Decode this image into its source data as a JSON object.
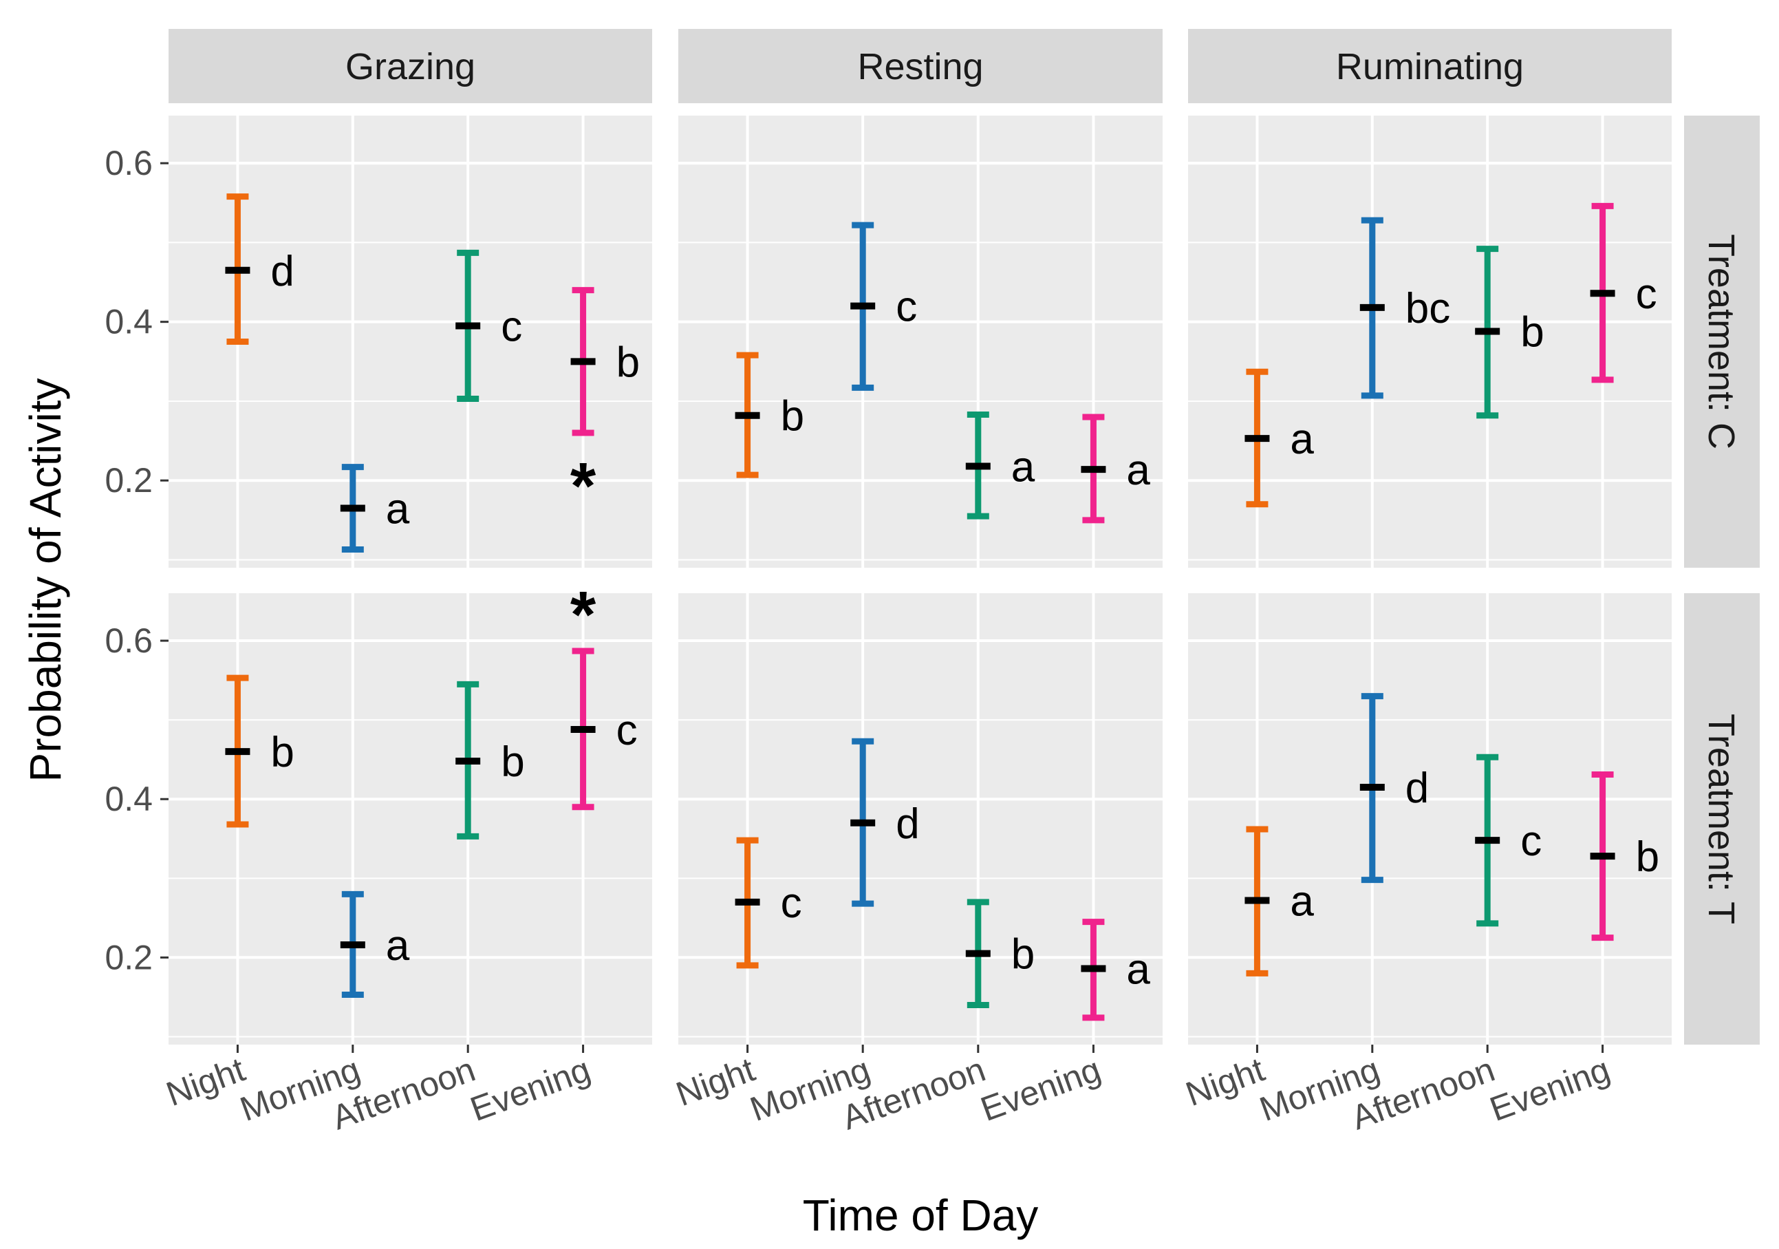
{
  "chart_data": {
    "type": "errorbar",
    "xlabel": "Time of Day",
    "ylabel": "Probability of Activity",
    "ylim": [
      0.09,
      0.66
    ],
    "yticks": [
      0.2,
      0.4,
      0.6
    ],
    "ytick_labels": [
      "0.2",
      "0.4",
      "0.6"
    ],
    "categories": [
      "Night",
      "Morning",
      "Afternoon",
      "Evening"
    ],
    "colors": {
      "Night": "#ef6a0d",
      "Morning": "#1b71b4",
      "Afternoon": "#0d9970",
      "Evening": "#f0238d"
    },
    "activities": [
      "Grazing",
      "Resting",
      "Ruminating"
    ],
    "treatments": [
      "Treatment: C",
      "Treatment: T"
    ],
    "panels": [
      {
        "activity": "Grazing",
        "treatment": "Treatment: C",
        "points": [
          {
            "category": "Night",
            "mean": 0.465,
            "lower": 0.375,
            "upper": 0.558,
            "letter": "d"
          },
          {
            "category": "Morning",
            "mean": 0.165,
            "lower": 0.113,
            "upper": 0.217,
            "letter": "a"
          },
          {
            "category": "Afternoon",
            "mean": 0.395,
            "lower": 0.303,
            "upper": 0.487,
            "letter": "c"
          },
          {
            "category": "Evening",
            "mean": 0.35,
            "lower": 0.26,
            "upper": 0.44,
            "letter": "b",
            "star": "*"
          }
        ]
      },
      {
        "activity": "Resting",
        "treatment": "Treatment: C",
        "points": [
          {
            "category": "Night",
            "mean": 0.282,
            "lower": 0.207,
            "upper": 0.358,
            "letter": "b"
          },
          {
            "category": "Morning",
            "mean": 0.42,
            "lower": 0.317,
            "upper": 0.522,
            "letter": "c"
          },
          {
            "category": "Afternoon",
            "mean": 0.218,
            "lower": 0.155,
            "upper": 0.283,
            "letter": "a"
          },
          {
            "category": "Evening",
            "mean": 0.214,
            "lower": 0.15,
            "upper": 0.28,
            "letter": "a"
          }
        ]
      },
      {
        "activity": "Ruminating",
        "treatment": "Treatment: C",
        "points": [
          {
            "category": "Night",
            "mean": 0.253,
            "lower": 0.17,
            "upper": 0.337,
            "letter": "a"
          },
          {
            "category": "Morning",
            "mean": 0.418,
            "lower": 0.307,
            "upper": 0.528,
            "letter": "bc"
          },
          {
            "category": "Afternoon",
            "mean": 0.388,
            "lower": 0.282,
            "upper": 0.492,
            "letter": "b"
          },
          {
            "category": "Evening",
            "mean": 0.436,
            "lower": 0.327,
            "upper": 0.546,
            "letter": "c"
          }
        ]
      },
      {
        "activity": "Grazing",
        "treatment": "Treatment: T",
        "points": [
          {
            "category": "Night",
            "mean": 0.46,
            "lower": 0.368,
            "upper": 0.553,
            "letter": "b"
          },
          {
            "category": "Morning",
            "mean": 0.216,
            "lower": 0.153,
            "upper": 0.28,
            "letter": "a"
          },
          {
            "category": "Afternoon",
            "mean": 0.448,
            "lower": 0.353,
            "upper": 0.545,
            "letter": "b"
          },
          {
            "category": "Evening",
            "mean": 0.488,
            "lower": 0.39,
            "upper": 0.587,
            "letter": "c",
            "star": "*"
          }
        ]
      },
      {
        "activity": "Resting",
        "treatment": "Treatment: T",
        "points": [
          {
            "category": "Night",
            "mean": 0.27,
            "lower": 0.19,
            "upper": 0.348,
            "letter": "c"
          },
          {
            "category": "Morning",
            "mean": 0.37,
            "lower": 0.268,
            "upper": 0.473,
            "letter": "d"
          },
          {
            "category": "Afternoon",
            "mean": 0.205,
            "lower": 0.14,
            "upper": 0.27,
            "letter": "b"
          },
          {
            "category": "Evening",
            "mean": 0.186,
            "lower": 0.124,
            "upper": 0.245,
            "letter": "a"
          }
        ]
      },
      {
        "activity": "Ruminating",
        "treatment": "Treatment: T",
        "points": [
          {
            "category": "Night",
            "mean": 0.272,
            "lower": 0.18,
            "upper": 0.362,
            "letter": "a"
          },
          {
            "category": "Morning",
            "mean": 0.415,
            "lower": 0.298,
            "upper": 0.53,
            "letter": "d"
          },
          {
            "category": "Afternoon",
            "mean": 0.348,
            "lower": 0.243,
            "upper": 0.453,
            "letter": "c"
          },
          {
            "category": "Evening",
            "mean": 0.328,
            "lower": 0.225,
            "upper": 0.431,
            "letter": "b"
          }
        ]
      }
    ]
  }
}
